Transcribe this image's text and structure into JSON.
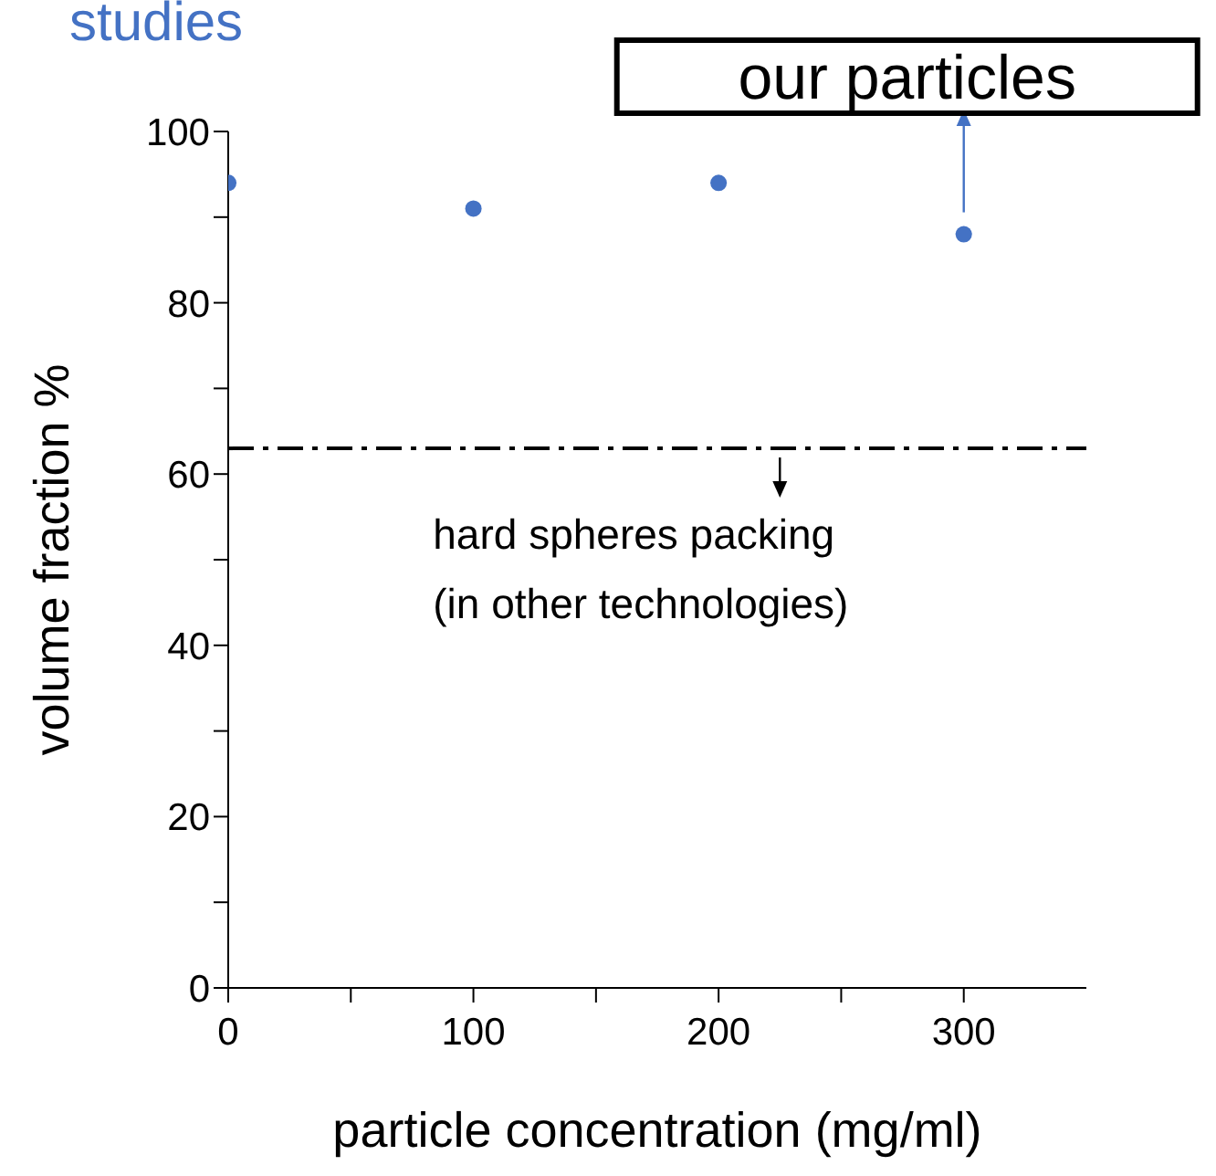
{
  "chart_data": {
    "type": "scatter",
    "title": "studies",
    "xlabel": "particle concentration (mg/ml)",
    "ylabel": "volume fraction  %",
    "x": [
      0,
      100,
      200,
      300
    ],
    "values": [
      94,
      91,
      94,
      88
    ],
    "color": "#4472c4",
    "marker": "circle",
    "xlim": [
      0,
      350
    ],
    "xticks": [
      0,
      {
        "value": 50,
        "label": null
      },
      100,
      {
        "value": 150,
        "label": null
      },
      200,
      {
        "value": 250,
        "label": null
      },
      300
    ],
    "ylim": [
      0,
      100
    ],
    "yticks": [
      0,
      {
        "value": 10,
        "label": null
      },
      20,
      {
        "value": 30,
        "label": null
      },
      40,
      {
        "value": 50,
        "label": null
      },
      60,
      {
        "value": 70,
        "label": null
      },
      80,
      {
        "value": 90,
        "label": null
      },
      100
    ],
    "grid": false,
    "legend": false,
    "ref_lines": [
      {
        "axis": "y",
        "value": 63,
        "color": "#000000",
        "line_style": "dashed"
      }
    ],
    "annotations": [
      {
        "text": "our particles",
        "x": 300,
        "y": 88
      },
      {
        "text": "hard spheres packing\n(in other technologies)",
        "x": 225,
        "y": 63
      }
    ]
  }
}
